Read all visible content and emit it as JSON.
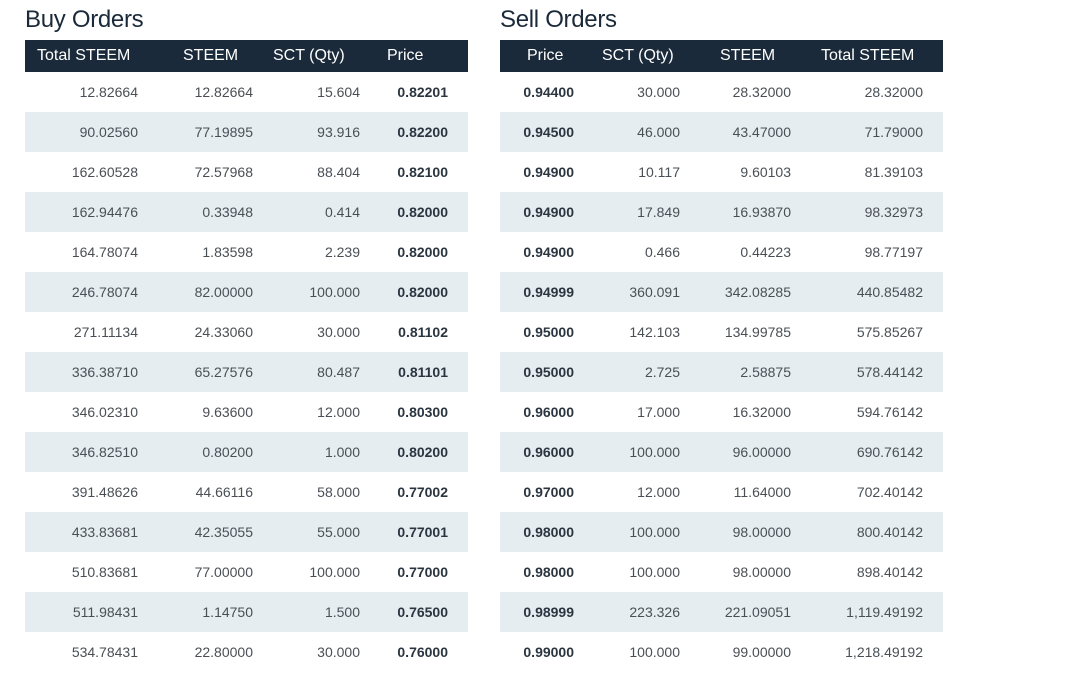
{
  "buy": {
    "title": "Buy Orders",
    "headers": [
      "Total STEEM",
      "STEEM",
      "SCT (Qty)",
      "Price"
    ],
    "rows": [
      [
        "12.82664",
        "12.82664",
        "15.604",
        "0.82201"
      ],
      [
        "90.02560",
        "77.19895",
        "93.916",
        "0.82200"
      ],
      [
        "162.60528",
        "72.57968",
        "88.404",
        "0.82100"
      ],
      [
        "162.94476",
        "0.33948",
        "0.414",
        "0.82000"
      ],
      [
        "164.78074",
        "1.83598",
        "2.239",
        "0.82000"
      ],
      [
        "246.78074",
        "82.00000",
        "100.000",
        "0.82000"
      ],
      [
        "271.11134",
        "24.33060",
        "30.000",
        "0.81102"
      ],
      [
        "336.38710",
        "65.27576",
        "80.487",
        "0.81101"
      ],
      [
        "346.02310",
        "9.63600",
        "12.000",
        "0.80300"
      ],
      [
        "346.82510",
        "0.80200",
        "1.000",
        "0.80200"
      ],
      [
        "391.48626",
        "44.66116",
        "58.000",
        "0.77002"
      ],
      [
        "433.83681",
        "42.35055",
        "55.000",
        "0.77001"
      ],
      [
        "510.83681",
        "77.00000",
        "100.000",
        "0.77000"
      ],
      [
        "511.98431",
        "1.14750",
        "1.500",
        "0.76500"
      ],
      [
        "534.78431",
        "22.80000",
        "30.000",
        "0.76000"
      ]
    ]
  },
  "sell": {
    "title": "Sell Orders",
    "headers": [
      "Price",
      "SCT (Qty)",
      "STEEM",
      "Total STEEM"
    ],
    "rows": [
      [
        "0.94400",
        "30.000",
        "28.32000",
        "28.32000"
      ],
      [
        "0.94500",
        "46.000",
        "43.47000",
        "71.79000"
      ],
      [
        "0.94900",
        "10.117",
        "9.60103",
        "81.39103"
      ],
      [
        "0.94900",
        "17.849",
        "16.93870",
        "98.32973"
      ],
      [
        "0.94900",
        "0.466",
        "0.44223",
        "98.77197"
      ],
      [
        "0.94999",
        "360.091",
        "342.08285",
        "440.85482"
      ],
      [
        "0.95000",
        "142.103",
        "134.99785",
        "575.85267"
      ],
      [
        "0.95000",
        "2.725",
        "2.58875",
        "578.44142"
      ],
      [
        "0.96000",
        "17.000",
        "16.32000",
        "594.76142"
      ],
      [
        "0.96000",
        "100.000",
        "96.00000",
        "690.76142"
      ],
      [
        "0.97000",
        "12.000",
        "11.64000",
        "702.40142"
      ],
      [
        "0.98000",
        "100.000",
        "98.00000",
        "800.40142"
      ],
      [
        "0.98000",
        "100.000",
        "98.00000",
        "898.40142"
      ],
      [
        "0.98999",
        "223.326",
        "221.09051",
        "1,119.49192"
      ],
      [
        "0.99000",
        "100.000",
        "99.00000",
        "1,218.49192"
      ]
    ]
  },
  "colors": {
    "header_bg": "#1b2a3a",
    "title_text": "#1b2a3a",
    "stripe_bg": "#e6edf1",
    "cell_text": "#4a4f55"
  }
}
